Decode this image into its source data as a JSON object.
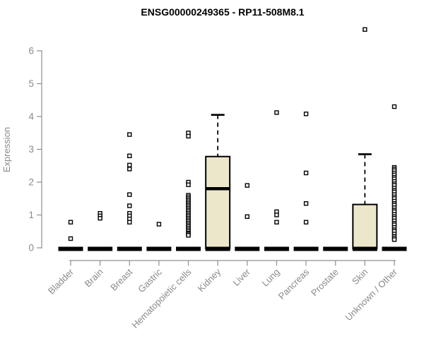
{
  "title": "ENSG00000249365 - RP11-508M8.1",
  "chart_data": {
    "type": "boxplot",
    "title": "ENSG00000249365 - RP11-508M8.1",
    "xlabel": "",
    "ylabel": "Expression",
    "ylim": [
      0,
      6.8
    ],
    "yticks": [
      0,
      1,
      2,
      3,
      4,
      5,
      6
    ],
    "grid": "off",
    "legend": "none",
    "categories": [
      "Bladder",
      "Brain",
      "Breast",
      "Gastric",
      "Hematopoietic cells",
      "Kidney",
      "Liver",
      "Lung",
      "Pancreas",
      "Prostate",
      "Skin",
      "Unknown / Other"
    ],
    "boxes": [
      {
        "category": "Bladder",
        "q1": 0,
        "median": 0,
        "q3": 0,
        "whisker_low": 0,
        "whisker_high": 0,
        "outliers": [
          0.78,
          0.28
        ]
      },
      {
        "category": "Brain",
        "q1": 0,
        "median": 0,
        "q3": 0,
        "whisker_low": 0,
        "whisker_high": 0,
        "outliers": [
          1.05,
          0.97,
          0.9
        ]
      },
      {
        "category": "Breast",
        "q1": 0,
        "median": 0,
        "q3": 0,
        "whisker_low": 0,
        "whisker_high": 0,
        "outliers": [
          3.45,
          2.8,
          2.52,
          2.4,
          1.62,
          1.28,
          1.05,
          0.97,
          0.88,
          0.78
        ]
      },
      {
        "category": "Gastric",
        "q1": 0,
        "median": 0,
        "q3": 0,
        "whisker_low": 0,
        "whisker_high": 0,
        "outliers": [
          0.72
        ]
      },
      {
        "category": "Hematopoietic cells",
        "q1": 0,
        "median": 0,
        "q3": 0,
        "whisker_low": 0,
        "whisker_high": 0,
        "outliers": [
          3.5,
          3.4,
          2.0,
          1.92,
          1.6,
          1.55,
          1.5,
          1.45,
          1.4,
          1.35,
          1.3,
          1.25,
          1.2,
          1.15,
          1.1,
          1.05,
          1.0,
          0.95,
          0.9,
          0.85,
          0.8,
          0.75,
          0.7,
          0.65,
          0.6,
          0.55,
          0.5,
          0.45,
          0.42,
          0.38
        ]
      },
      {
        "category": "Kidney",
        "q1": 0,
        "median": 1.8,
        "q3": 2.78,
        "whisker_low": 0,
        "whisker_high": 4.05,
        "outliers": []
      },
      {
        "category": "Liver",
        "q1": 0,
        "median": 0,
        "q3": 0,
        "whisker_low": 0,
        "whisker_high": 0,
        "outliers": [
          1.9,
          0.95
        ]
      },
      {
        "category": "Lung",
        "q1": 0,
        "median": 0,
        "q3": 0,
        "whisker_low": 0,
        "whisker_high": 0,
        "outliers": [
          4.12,
          1.1,
          1.0,
          0.78
        ]
      },
      {
        "category": "Pancreas",
        "q1": 0,
        "median": 0,
        "q3": 0,
        "whisker_low": 0,
        "whisker_high": 0,
        "outliers": [
          4.08,
          2.28,
          1.35,
          0.78
        ]
      },
      {
        "category": "Prostate",
        "q1": 0,
        "median": 0,
        "q3": 0,
        "whisker_low": 0,
        "whisker_high": 0,
        "outliers": []
      },
      {
        "category": "Skin",
        "q1": 0,
        "median": 0,
        "q3": 1.32,
        "whisker_low": 0,
        "whisker_high": 2.85,
        "outliers": [
          6.65
        ]
      },
      {
        "category": "Unknown / Other",
        "q1": 0,
        "median": 0,
        "q3": 0,
        "whisker_low": 0,
        "whisker_high": 0,
        "outliers": [
          4.3,
          2.45,
          2.4,
          2.35,
          2.28,
          2.22,
          2.15,
          2.1,
          2.02,
          1.95,
          1.9,
          1.82,
          1.75,
          1.7,
          1.62,
          1.55,
          1.5,
          1.42,
          1.35,
          1.3,
          1.22,
          1.15,
          1.1,
          1.02,
          0.95,
          0.9,
          0.82,
          0.75,
          0.7,
          0.62,
          0.55,
          0.5,
          0.42,
          0.35,
          0.3,
          0.25
        ]
      }
    ],
    "colors": {
      "box_fill": "#ECE6CB",
      "box_border": "#000000",
      "median": "#000000",
      "whisker": "#000000",
      "outlier_stroke": "#000000",
      "outlier_fill": "#ffffff",
      "axis": "#909090",
      "tick_label": "#8a8a8a",
      "title": "#000000",
      "background": "#ffffff"
    }
  }
}
